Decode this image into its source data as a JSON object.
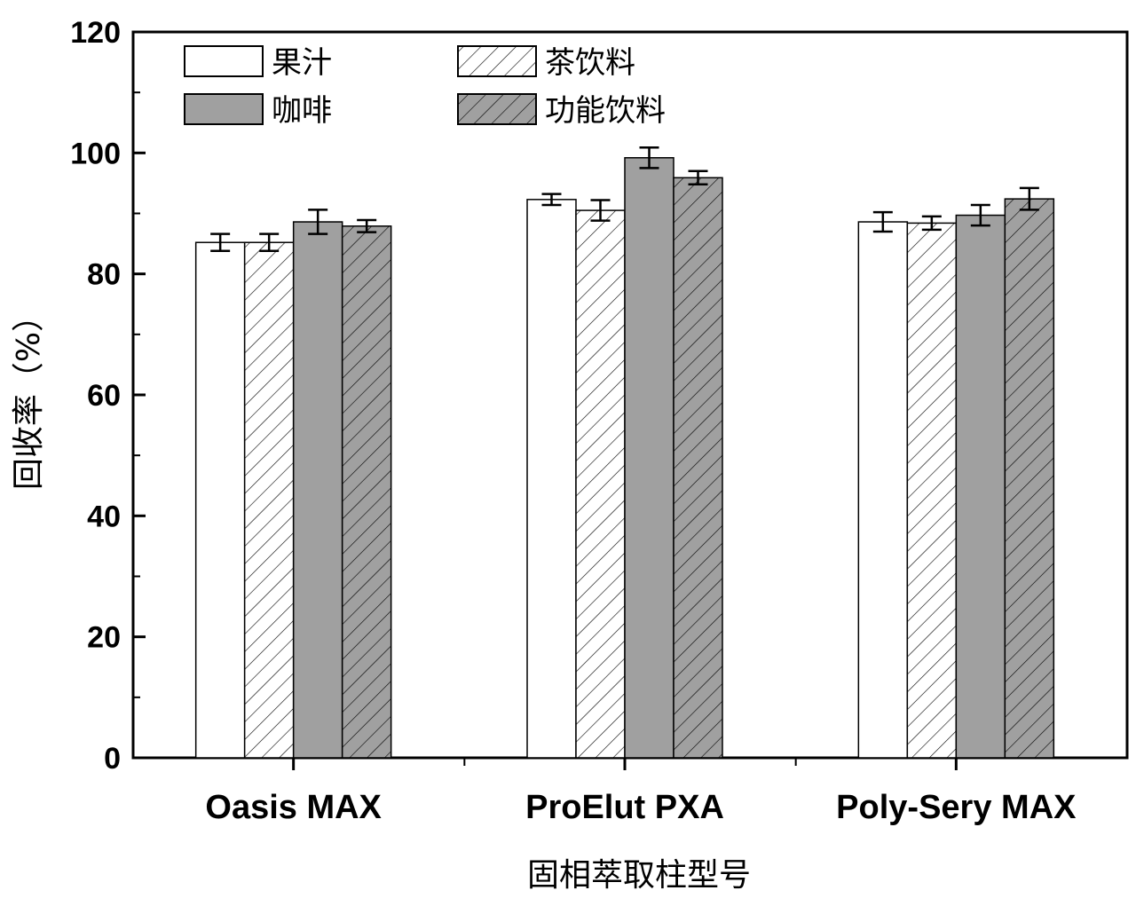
{
  "chart_data": {
    "type": "bar",
    "categories": [
      "Oasis MAX",
      "ProElut PXA",
      "Poly-Sery MAX"
    ],
    "series": [
      {
        "name": "果汁",
        "values": [
          85.2,
          92.3,
          88.6
        ],
        "errors": [
          1.4,
          0.9,
          1.6
        ],
        "fill": "#ffffff",
        "hatch": false
      },
      {
        "name": "茶饮料",
        "values": [
          85.2,
          90.5,
          88.4
        ],
        "errors": [
          1.4,
          1.7,
          1.1
        ],
        "fill": "#ffffff",
        "hatch": true
      },
      {
        "name": "咖啡",
        "values": [
          88.6,
          99.2,
          89.7
        ],
        "errors": [
          2.0,
          1.7,
          1.7
        ],
        "fill": "#a0a0a0",
        "hatch": false
      },
      {
        "name": "功能饮料",
        "values": [
          87.9,
          95.9,
          92.4
        ],
        "errors": [
          1.0,
          1.1,
          1.8
        ],
        "fill": "#a0a0a0",
        "hatch": true
      }
    ],
    "xlabel": "固相萃取柱型号",
    "ylabel": "回收率（%）",
    "ylim": [
      0,
      120
    ],
    "yticks": [
      0,
      20,
      40,
      60,
      80,
      100,
      120
    ],
    "grid": false,
    "legend_position": "top-left"
  }
}
